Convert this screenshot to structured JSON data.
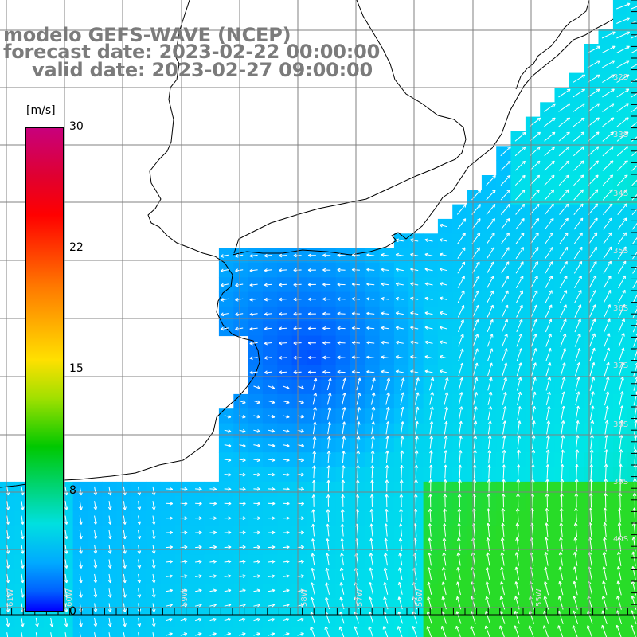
{
  "title": {
    "line1": "modelo GEFS-WAVE (NCEP)",
    "line2": "forecast date: 2023-02-22 00:00:00",
    "line3": "valid date: 2023-02-27 09:00:00"
  },
  "colorbar": {
    "unit": "[m/s]",
    "ticks": [
      "30",
      "22",
      "15",
      "8",
      "0"
    ],
    "colors": [
      "#c8007c",
      "#ff0000",
      "#ff7a00",
      "#ffe000",
      "#00c800",
      "#00e0e0",
      "#00aaff",
      "#0000ff"
    ]
  },
  "lat_labels": [
    "32S",
    "33S",
    "34S",
    "35S",
    "36S",
    "37S",
    "38S",
    "39S",
    "40S"
  ],
  "lon_labels": [
    "61W",
    "60W",
    "59W",
    "58W",
    "57W",
    "56W",
    "55W"
  ],
  "colors": {
    "land": "#ffffff",
    "coast": "#000000",
    "grid": "#808080",
    "title": "#7b7b7b"
  }
}
